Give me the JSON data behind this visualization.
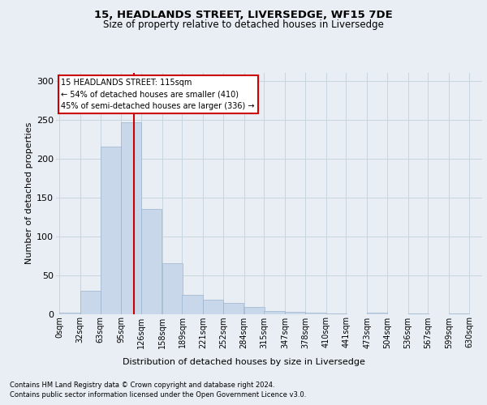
{
  "title": "15, HEADLANDS STREET, LIVERSEDGE, WF15 7DE",
  "subtitle": "Size of property relative to detached houses in Liversedge",
  "xlabel": "Distribution of detached houses by size in Liversedge",
  "ylabel": "Number of detached properties",
  "footer_line1": "Contains HM Land Registry data © Crown copyright and database right 2024.",
  "footer_line2": "Contains public sector information licensed under the Open Government Licence v3.0.",
  "annotation_line1": "15 HEADLANDS STREET: 115sqm",
  "annotation_line2": "← 54% of detached houses are smaller (410)",
  "annotation_line3": "45% of semi-detached houses are larger (336) →",
  "property_size_sqm": 115,
  "bin_starts": [
    0,
    32,
    63,
    95,
    126,
    158,
    189,
    221,
    252,
    284,
    315,
    347,
    378,
    410,
    441,
    473,
    504,
    536,
    567,
    599
  ],
  "bin_labels": [
    "0sqm",
    "32sqm",
    "63sqm",
    "95sqm",
    "126sqm",
    "158sqm",
    "189sqm",
    "221sqm",
    "252sqm",
    "284sqm",
    "315sqm",
    "347sqm",
    "378sqm",
    "410sqm",
    "441sqm",
    "473sqm",
    "504sqm",
    "536sqm",
    "567sqm",
    "599sqm",
    "630sqm"
  ],
  "counts": [
    2,
    30,
    215,
    246,
    135,
    65,
    24,
    18,
    14,
    9,
    4,
    3,
    2,
    1,
    0,
    2,
    0,
    1,
    0,
    1
  ],
  "bar_color": "#c8d8ea",
  "bar_edge_color": "#9ab4cc",
  "vline_color": "#cc0000",
  "vline_x": 115,
  "annotation_box_facecolor": "#ffffff",
  "annotation_box_edgecolor": "#cc0000",
  "grid_color": "#c8d4de",
  "background_color": "#e8eef4",
  "ylim": [
    0,
    310
  ],
  "yticks": [
    0,
    50,
    100,
    150,
    200,
    250,
    300
  ],
  "xlim_left": -5,
  "xlim_right": 650
}
